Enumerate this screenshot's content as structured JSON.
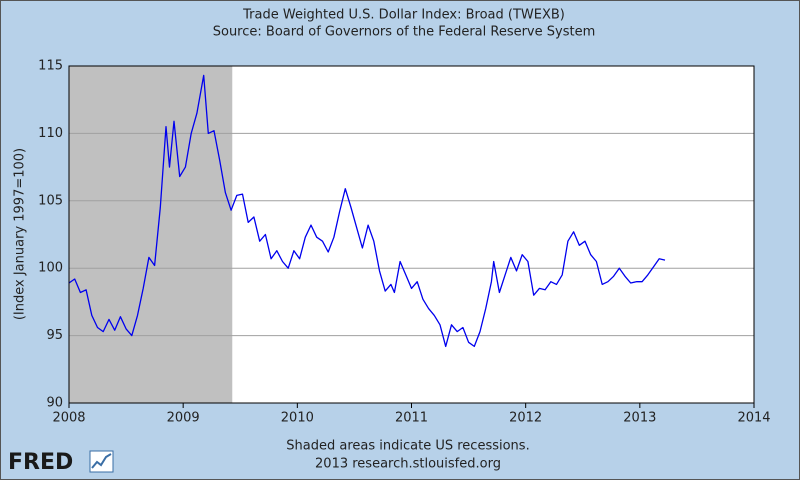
{
  "chart_data": {
    "type": "line",
    "title": "Trade Weighted U.S. Dollar Index: Broad (TWEXB)",
    "subtitle": "Source: Board of Governors of the Federal Reserve System",
    "y_label": "(Index January 1997=100)",
    "note": "Shaded areas indicate US recessions.",
    "source": "2013 research.stlouisfed.org",
    "logo": "FRED",
    "recession": [
      2008,
      2009.43
    ],
    "recession_color": "#c0c0c0",
    "xlim": [
      2008,
      2014
    ],
    "xticks": [
      2008,
      2009,
      2010,
      2011,
      2012,
      2013,
      2014
    ],
    "ylim": [
      90,
      115
    ],
    "yticks": [
      90,
      95,
      100,
      105,
      110,
      115
    ],
    "grid": true,
    "series": [
      {
        "name": "TWEXB",
        "color": "#0000ee",
        "x": [
          2008.0,
          2008.05,
          2008.1,
          2008.15,
          2008.2,
          2008.25,
          2008.3,
          2008.35,
          2008.4,
          2008.45,
          2008.5,
          2008.55,
          2008.6,
          2008.65,
          2008.7,
          2008.75,
          2008.8,
          2008.85,
          2008.88,
          2008.92,
          2008.97,
          2009.02,
          2009.07,
          2009.12,
          2009.18,
          2009.22,
          2009.27,
          2009.32,
          2009.37,
          2009.42,
          2009.47,
          2009.52,
          2009.57,
          2009.62,
          2009.67,
          2009.72,
          2009.77,
          2009.82,
          2009.87,
          2009.92,
          2009.97,
          2010.02,
          2010.07,
          2010.12,
          2010.17,
          2010.22,
          2010.27,
          2010.32,
          2010.37,
          2010.42,
          2010.47,
          2010.52,
          2010.57,
          2010.62,
          2010.67,
          2010.72,
          2010.77,
          2010.82,
          2010.85,
          2010.9,
          2010.95,
          2011.0,
          2011.05,
          2011.1,
          2011.15,
          2011.2,
          2011.25,
          2011.3,
          2011.35,
          2011.4,
          2011.45,
          2011.5,
          2011.55,
          2011.6,
          2011.65,
          2011.7,
          2011.72,
          2011.77,
          2011.82,
          2011.87,
          2011.92,
          2011.97,
          2012.02,
          2012.07,
          2012.12,
          2012.17,
          2012.22,
          2012.27,
          2012.32,
          2012.37,
          2012.42,
          2012.47,
          2012.52,
          2012.57,
          2012.62,
          2012.67,
          2012.72,
          2012.77,
          2012.82,
          2012.87,
          2012.92,
          2012.97,
          2013.02,
          2013.07,
          2013.12,
          2013.17,
          2013.22
        ],
        "values": [
          98.9,
          99.2,
          98.2,
          98.4,
          96.5,
          95.6,
          95.3,
          96.2,
          95.4,
          96.4,
          95.5,
          95.0,
          96.5,
          98.5,
          100.8,
          100.2,
          104.5,
          110.5,
          107.5,
          110.9,
          106.8,
          107.5,
          110.0,
          111.5,
          114.3,
          110.0,
          110.2,
          108.0,
          105.6,
          104.3,
          105.4,
          105.5,
          103.4,
          103.8,
          102.0,
          102.5,
          100.7,
          101.3,
          100.5,
          100.0,
          101.3,
          100.7,
          102.3,
          103.2,
          102.3,
          102.0,
          101.2,
          102.3,
          104.2,
          105.9,
          104.5,
          103.0,
          101.5,
          103.2,
          102.0,
          99.8,
          98.3,
          98.8,
          98.2,
          100.5,
          99.5,
          98.5,
          99.0,
          97.7,
          97.0,
          96.5,
          95.8,
          94.2,
          95.8,
          95.3,
          95.6,
          94.5,
          94.2,
          95.3,
          97.0,
          99.0,
          100.5,
          98.2,
          99.5,
          100.8,
          99.8,
          101.0,
          100.5,
          98.0,
          98.5,
          98.4,
          99.0,
          98.8,
          99.5,
          102.0,
          102.7,
          101.7,
          102.0,
          101.0,
          100.5,
          98.8,
          99.0,
          99.4,
          100.0,
          99.4,
          98.9,
          99.0,
          99.0,
          99.5,
          100.1,
          100.7,
          100.6
        ]
      }
    ]
  }
}
